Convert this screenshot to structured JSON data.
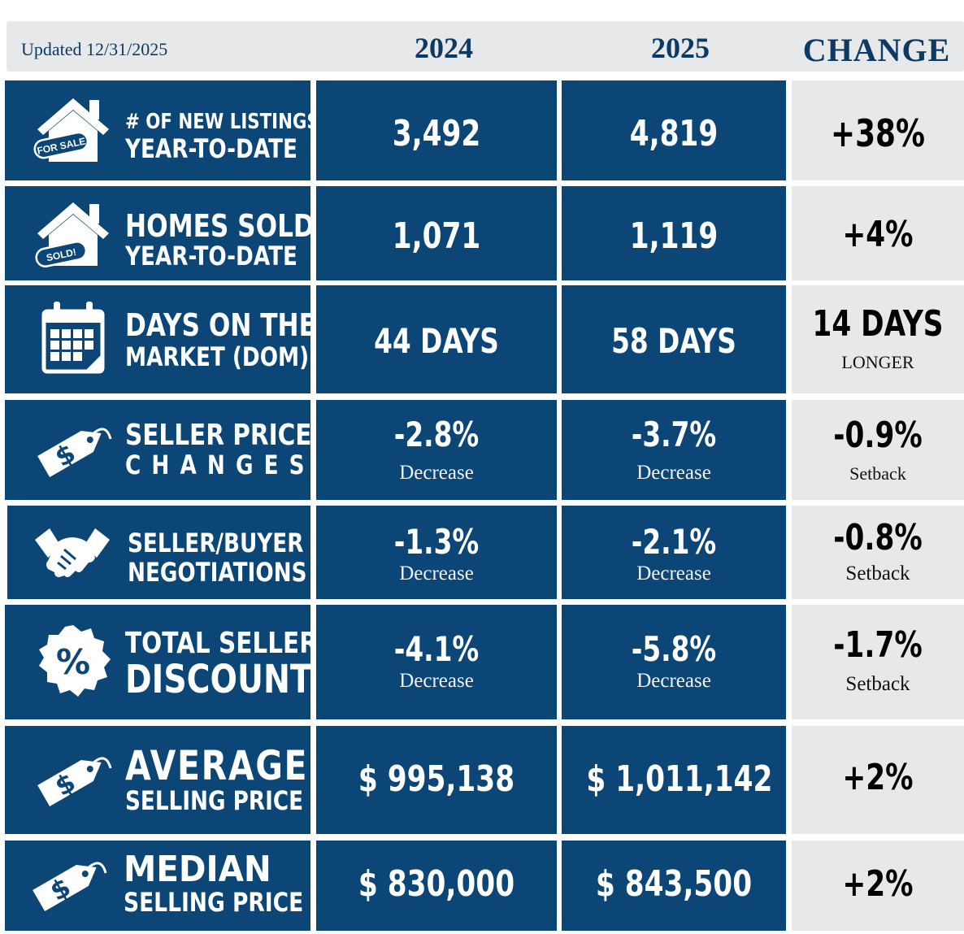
{
  "header": {
    "updated": "Updated 12/31/2025",
    "year_a": "2024",
    "year_b": "2025",
    "change": "CHANGE"
  },
  "colors": {
    "navy": "#0b4676",
    "header_text": "#0d3a63",
    "grey": "#e7e8ea"
  },
  "rows": [
    {
      "icon": "house-for-sale-icon",
      "icon_text": "FOR SALE",
      "label_1": "# OF NEW LISTINGS",
      "label_2": "YEAR-TO-DATE",
      "v2024": "3,492",
      "v2025": "4,819",
      "change": "+38%"
    },
    {
      "icon": "house-sold-icon",
      "icon_text": "SOLD!",
      "label_1": "HOMES SOLD",
      "label_2": "YEAR-TO-DATE",
      "v2024": "1,071",
      "v2025": "1,119",
      "change": "+4%"
    },
    {
      "icon": "calendar-icon",
      "label_1": "DAYS ON THE",
      "label_2": "MARKET (DOM)",
      "v2024": "44 DAYS",
      "v2025": "58 DAYS",
      "change": "14 DAYS",
      "change_sub": "LONGER"
    },
    {
      "icon": "price-tag-icon",
      "label_1": "SELLER PRICE",
      "label_2": "CHANGES",
      "v2024": "-2.8%",
      "v2024_sub": "Decrease",
      "v2025": "-3.7%",
      "v2025_sub": "Decrease",
      "change": "-0.9%",
      "change_sub": "Setback"
    },
    {
      "icon": "handshake-icon",
      "label_1": "SELLER/BUYER",
      "label_2": "NEGOTIATIONS",
      "v2024": "-1.3%",
      "v2024_sub": "Decrease",
      "v2025": "-2.1%",
      "v2025_sub": "Decrease",
      "change": "-0.8%",
      "change_sub": "Setback"
    },
    {
      "icon": "percent-badge-icon",
      "label_1": "TOTAL SELLER",
      "label_2": "DISCOUNT",
      "v2024": "-4.1%",
      "v2024_sub": "Decrease",
      "v2025": "-5.8%",
      "v2025_sub": "Decrease",
      "change": "-1.7%",
      "change_sub": "Setback"
    },
    {
      "icon": "price-tag-icon",
      "label_1": "AVERAGE",
      "label_2": "SELLING PRICE",
      "v2024": "$ 995,138",
      "v2025": "$ 1,011,142",
      "change": "+2%"
    },
    {
      "icon": "price-tag-icon",
      "label_1": "MEDIAN",
      "label_2": "SELLING PRICE",
      "v2024": "$ 830,000",
      "v2025": "$ 843,500",
      "change": "+2%"
    }
  ]
}
